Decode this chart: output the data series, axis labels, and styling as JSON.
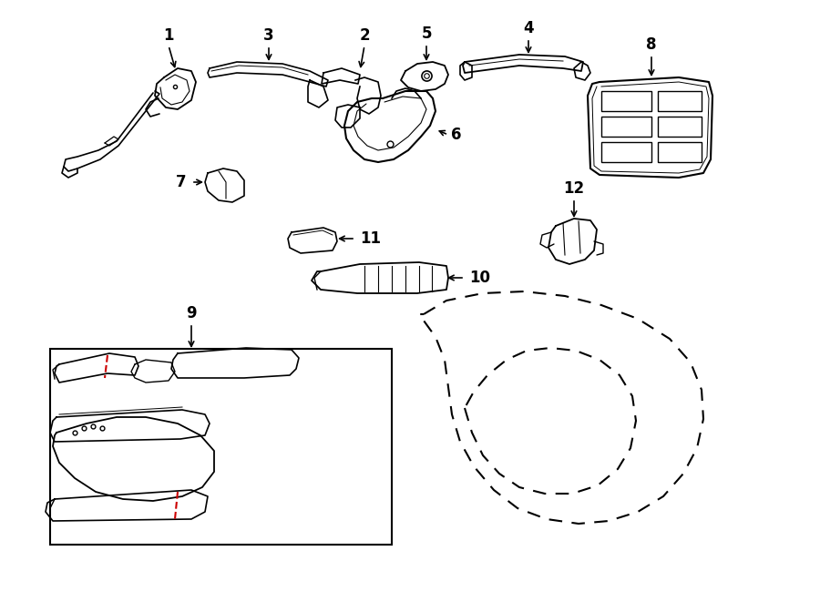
{
  "bg_color": "#ffffff",
  "line_color": "#000000",
  "red_color": "#cc0000",
  "label_fontsize": 12,
  "figsize": [
    9.0,
    6.61
  ],
  "dpi": 100
}
